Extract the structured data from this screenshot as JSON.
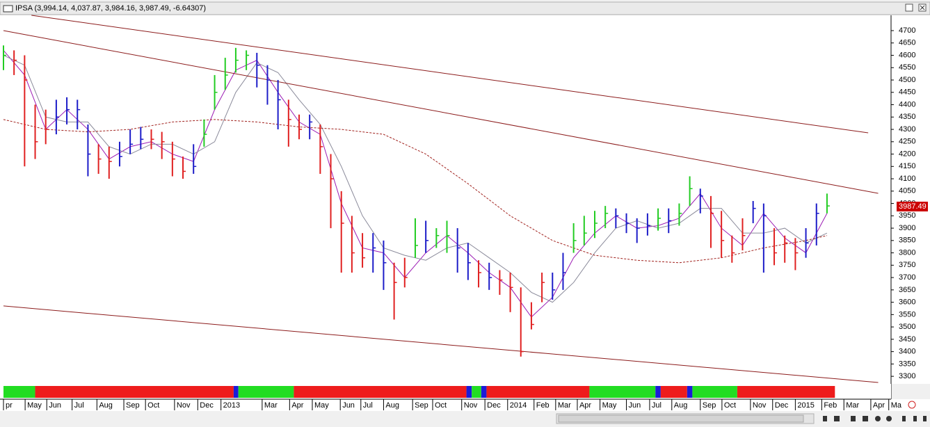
{
  "chart_data": {
    "type": "ohlc",
    "title": "IPSA (3,994.14, 4,037.87, 3,984.16, 3,987.49, -6.64307)",
    "xlim": [
      0,
      168
    ],
    "ylim": [
      3275,
      4762
    ],
    "yticks": [
      3300,
      3350,
      3400,
      3450,
      3500,
      3550,
      3600,
      3650,
      3700,
      3750,
      3800,
      3850,
      3900,
      3950,
      4000,
      4050,
      4100,
      4150,
      4200,
      4250,
      4300,
      4350,
      4400,
      4450,
      4500,
      4550,
      4600,
      4650,
      4700
    ],
    "xticks": [
      {
        "value": 0,
        "label": "pr"
      },
      {
        "value": 4.1,
        "label": "May"
      },
      {
        "value": 8.2,
        "label": "Jun"
      },
      {
        "value": 13,
        "label": "Jul"
      },
      {
        "value": 17.7,
        "label": "Aug"
      },
      {
        "value": 22.8,
        "label": "Sep"
      },
      {
        "value": 26.9,
        "label": "Oct"
      },
      {
        "value": 32.4,
        "label": "Nov"
      },
      {
        "value": 36.8,
        "label": "Dec"
      },
      {
        "value": 41.2,
        "label": "2013"
      },
      {
        "value": 49,
        "label": "Mar"
      },
      {
        "value": 54.2,
        "label": "Apr"
      },
      {
        "value": 58.5,
        "label": "May"
      },
      {
        "value": 63.8,
        "label": "Jun"
      },
      {
        "value": 67.7,
        "label": "Jul"
      },
      {
        "value": 72,
        "label": "Aug"
      },
      {
        "value": 77.5,
        "label": "Sep"
      },
      {
        "value": 81.3,
        "label": "Oct"
      },
      {
        "value": 86.8,
        "label": "Nov"
      },
      {
        "value": 91.2,
        "label": "Dec"
      },
      {
        "value": 95.5,
        "label": "2014"
      },
      {
        "value": 100.5,
        "label": "Feb"
      },
      {
        "value": 104.6,
        "label": "Mar"
      },
      {
        "value": 108.7,
        "label": "Apr"
      },
      {
        "value": 113,
        "label": "May"
      },
      {
        "value": 118,
        "label": "Jun"
      },
      {
        "value": 122.4,
        "label": "Jul"
      },
      {
        "value": 126.6,
        "label": "Aug"
      },
      {
        "value": 132,
        "label": "Sep"
      },
      {
        "value": 136.1,
        "label": "Oct"
      },
      {
        "value": 141.5,
        "label": "Nov"
      },
      {
        "value": 145.7,
        "label": "Dec"
      },
      {
        "value": 150,
        "label": "2015"
      },
      {
        "value": 155,
        "label": "Feb"
      },
      {
        "value": 159.2,
        "label": "Mar"
      },
      {
        "value": 164.3,
        "label": "Apr"
      },
      {
        "value": 167.7,
        "label": "Ma"
      }
    ],
    "bars": {
      "x": [
        0,
        2,
        4,
        6,
        8,
        10,
        12,
        14,
        16,
        18,
        20,
        22,
        24,
        26,
        28,
        30,
        32,
        34,
        36,
        38,
        40,
        42,
        44,
        46,
        48,
        50,
        52,
        54,
        56,
        58,
        60,
        62,
        64,
        66,
        68,
        70,
        72,
        74,
        76,
        78,
        80,
        82,
        84,
        86,
        88,
        90,
        92,
        94,
        96,
        98,
        100,
        102,
        104,
        106,
        108,
        110,
        112,
        114,
        116,
        118,
        120,
        122,
        124,
        126,
        128,
        130,
        132,
        134,
        136,
        138,
        140,
        142,
        144,
        146,
        148,
        150,
        152,
        154,
        156
      ],
      "high": [
        4640,
        4620,
        4600,
        4400,
        4380,
        4420,
        4430,
        4420,
        4320,
        4240,
        4230,
        4250,
        4300,
        4310,
        4300,
        4290,
        4250,
        4190,
        4240,
        4340,
        4520,
        4590,
        4630,
        4620,
        4610,
        4560,
        4500,
        4420,
        4360,
        4360,
        4320,
        4200,
        4050,
        3950,
        3880,
        3880,
        3850,
        3760,
        3780,
        3940,
        3930,
        3900,
        3930,
        3900,
        3840,
        3770,
        3760,
        3730,
        3720,
        3660,
        3600,
        3720,
        3720,
        3800,
        3920,
        3950,
        3970,
        3990,
        3980,
        3960,
        3940,
        3960,
        3980,
        3980,
        4000,
        4110,
        4060,
        4030,
        3970,
        3870,
        3940,
        4010,
        4000,
        3900,
        3870,
        3860,
        3900,
        4000,
        4040
      ],
      "low": [
        4540,
        4520,
        4150,
        4180,
        4240,
        4280,
        4320,
        4300,
        4110,
        4120,
        4100,
        4150,
        4200,
        4220,
        4220,
        4180,
        4110,
        4100,
        4120,
        4230,
        4380,
        4460,
        4530,
        4540,
        4470,
        4400,
        4300,
        4230,
        4260,
        4260,
        4120,
        3900,
        3720,
        3720,
        3740,
        3720,
        3650,
        3530,
        3660,
        3780,
        3800,
        3820,
        3800,
        3720,
        3690,
        3660,
        3650,
        3630,
        3560,
        3380,
        3490,
        3600,
        3610,
        3650,
        3800,
        3830,
        3860,
        3900,
        3900,
        3880,
        3840,
        3870,
        3890,
        3880,
        3910,
        3990,
        3960,
        3820,
        3780,
        3760,
        3810,
        3920,
        3720,
        3750,
        3760,
        3730,
        3780,
        3830,
        3960
      ],
      "close": [
        4600,
        4580,
        4500,
        4250,
        4300,
        4350,
        4380,
        4380,
        4200,
        4180,
        4170,
        4190,
        4240,
        4260,
        4260,
        4250,
        4180,
        4130,
        4150,
        4280,
        4450,
        4520,
        4580,
        4600,
        4560,
        4500,
        4420,
        4340,
        4300,
        4330,
        4230,
        4100,
        3920,
        3800,
        3780,
        3820,
        3760,
        3680,
        3700,
        3830,
        3850,
        3870,
        3870,
        3820,
        3760,
        3720,
        3700,
        3690,
        3660,
        3400,
        3510,
        3680,
        3650,
        3720,
        3850,
        3880,
        3920,
        3960,
        3950,
        3920,
        3900,
        3910,
        3940,
        3930,
        3960,
        4060,
        4030,
        3960,
        3850,
        3800,
        3870,
        3980,
        3950,
        3800,
        3840,
        3800,
        3840,
        3960,
        3990
      ],
      "colors": [
        "#22cc22",
        "#e02020",
        "#e02020",
        "#e02020",
        "#e02020",
        "#1c1cc8",
        "#1c1cc8",
        "#1c1cc8",
        "#1c1cc8",
        "#e02020",
        "#e02020",
        "#1c1cc8",
        "#1c1cc8",
        "#1c1cc8",
        "#e02020",
        "#e02020",
        "#e02020",
        "#e02020",
        "#1c1cc8",
        "#22cc22",
        "#22cc22",
        "#22cc22",
        "#22cc22",
        "#22cc22",
        "#1c1cc8",
        "#1c1cc8",
        "#1c1cc8",
        "#e02020",
        "#e02020",
        "#1c1cc8",
        "#e02020",
        "#e02020",
        "#e02020",
        "#e02020",
        "#e02020",
        "#1c1cc8",
        "#1c1cc8",
        "#e02020",
        "#e02020",
        "#22cc22",
        "#1c1cc8",
        "#22cc22",
        "#22cc22",
        "#1c1cc8",
        "#1c1cc8",
        "#e02020",
        "#1c1cc8",
        "#e02020",
        "#e02020",
        "#e02020",
        "#e02020",
        "#e02020",
        "#1c1cc8",
        "#1c1cc8",
        "#22cc22",
        "#22cc22",
        "#22cc22",
        "#22cc22",
        "#1c1cc8",
        "#1c1cc8",
        "#1c1cc8",
        "#1c1cc8",
        "#22cc22",
        "#1c1cc8",
        "#22cc22",
        "#22cc22",
        "#1c1cc8",
        "#e02020",
        "#e02020",
        "#e02020",
        "#e02020",
        "#1c1cc8",
        "#1c1cc8",
        "#e02020",
        "#e02020",
        "#e02020",
        "#1c1cc8",
        "#1c1cc8",
        "#22cc22"
      ]
    },
    "lines": [
      {
        "color": "#9c1cb4",
        "dash": false,
        "x": [
          0,
          4,
          8,
          12,
          16,
          20,
          24,
          28,
          32,
          36,
          40,
          44,
          48,
          52,
          56,
          60,
          64,
          68,
          72,
          76,
          80,
          84,
          88,
          92,
          96,
          100,
          104,
          108,
          112,
          116,
          120,
          124,
          128,
          132,
          136,
          140,
          144,
          148,
          152,
          156
        ],
        "values": [
          4620,
          4520,
          4300,
          4380,
          4300,
          4180,
          4230,
          4250,
          4200,
          4170,
          4380,
          4540,
          4580,
          4450,
          4330,
          4280,
          4000,
          3820,
          3800,
          3700,
          3800,
          3870,
          3800,
          3720,
          3660,
          3540,
          3620,
          3780,
          3880,
          3950,
          3900,
          3910,
          3940,
          4040,
          3900,
          3830,
          3960,
          3860,
          3800,
          3960
        ]
      },
      {
        "color": "#8a8a9a",
        "dash": false,
        "x": [
          0,
          4,
          8,
          12,
          16,
          20,
          24,
          28,
          32,
          36,
          40,
          44,
          48,
          52,
          56,
          60,
          64,
          68,
          72,
          76,
          80,
          84,
          88,
          92,
          96,
          100,
          104,
          108,
          112,
          116,
          120,
          124,
          128,
          132,
          136,
          140,
          144,
          148,
          152,
          156
        ],
        "values": [
          4600,
          4560,
          4350,
          4330,
          4330,
          4230,
          4200,
          4240,
          4240,
          4200,
          4250,
          4450,
          4570,
          4530,
          4420,
          4320,
          4150,
          3950,
          3820,
          3790,
          3770,
          3820,
          3840,
          3780,
          3720,
          3640,
          3600,
          3680,
          3800,
          3900,
          3930,
          3900,
          3920,
          3980,
          3980,
          3880,
          3880,
          3900,
          3840,
          3880
        ]
      },
      {
        "color": "#a0201c",
        "dash": true,
        "x": [
          0,
          8,
          16,
          24,
          32,
          40,
          48,
          56,
          64,
          72,
          80,
          88,
          96,
          104,
          112,
          120,
          128,
          136,
          144,
          152,
          156
        ],
        "values": [
          4340,
          4300,
          4290,
          4300,
          4330,
          4340,
          4330,
          4310,
          4300,
          4280,
          4200,
          4080,
          3950,
          3850,
          3790,
          3770,
          3760,
          3780,
          3820,
          3850,
          3870
        ]
      },
      {
        "color": "#8b1a1a",
        "dash": false,
        "x": [
          5.3,
          163.8
        ],
        "values": [
          4762,
          4286
        ]
      },
      {
        "color": "#8b1a1a",
        "dash": false,
        "x": [
          0,
          165.7
        ],
        "values": [
          4700,
          4041
        ]
      },
      {
        "color": "#8b1a1a",
        "dash": false,
        "x": [
          0,
          165.7
        ],
        "values": [
          3585,
          3275
        ]
      }
    ],
    "band": {
      "edges": [
        0,
        6,
        43.6,
        44.5,
        55,
        87.7,
        88.7,
        90.5,
        91.5,
        111,
        123.5,
        124.5,
        129.5,
        130.5,
        139,
        157.5
      ],
      "colors": [
        "#22dd22",
        "#ee1c1c",
        "#1c1cd8",
        "#22dd22",
        "#ee1c1c",
        "#1c1cd8",
        "#22dd22",
        "#1c1cd8",
        "#ee1c1c",
        "#22dd22",
        "#1c1cd8",
        "#ee1c1c",
        "#1c1cd8",
        "#22dd22",
        "#ee1c1c"
      ]
    },
    "last_value": 3987.49,
    "last_color": "#cc0000"
  }
}
